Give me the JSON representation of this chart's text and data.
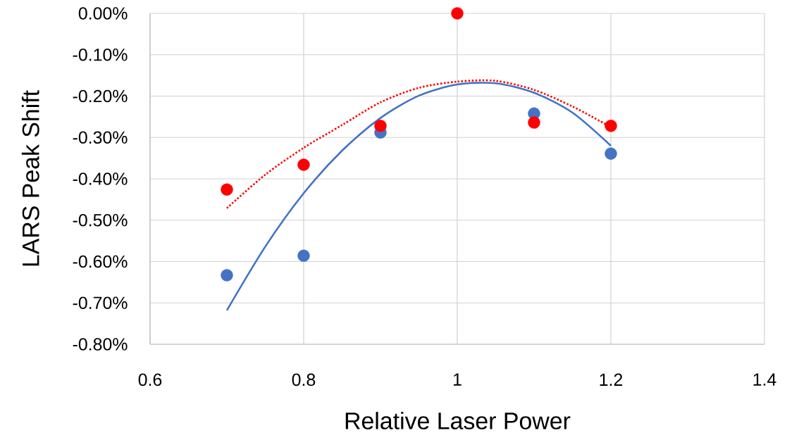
{
  "chart_data": {
    "type": "scatter",
    "xlabel": "Relative Laser Power",
    "ylabel": "LARS Peak Shift",
    "x": [
      0.7,
      0.8,
      0.9,
      1,
      1.1,
      1.2
    ],
    "series": [
      {
        "marker": "circle",
        "color": "#4472c4",
        "values": [
          -0.633,
          -0.586,
          -0.288,
          null,
          -0.242,
          -0.339
        ]
      },
      {
        "marker": "circle",
        "color": "#ff0000",
        "values": [
          -0.426,
          -0.366,
          -0.272,
          0,
          -0.264,
          -0.272
        ]
      },
      {
        "type": "line",
        "line_style": "solid",
        "color": "#4472c4",
        "x": [
          0.7,
          0.75,
          0.8,
          0.85,
          0.9,
          0.95,
          1.0,
          1.05,
          1.1,
          1.15,
          1.2
        ],
        "values": [
          -0.718,
          -0.564,
          -0.435,
          -0.332,
          -0.253,
          -0.199,
          -0.172,
          -0.169,
          -0.192,
          -0.24,
          -0.32
        ]
      },
      {
        "type": "line",
        "line_style": "dotted",
        "color": "#ff0000",
        "x": [
          0.7,
          0.75,
          0.8,
          0.85,
          0.9,
          0.95,
          1.0,
          1.05,
          1.1,
          1.15,
          1.2
        ],
        "values": [
          -0.471,
          -0.39,
          -0.325,
          -0.27,
          -0.215,
          -0.18,
          -0.165,
          -0.163,
          -0.185,
          -0.225,
          -0.275
        ]
      }
    ],
    "xlim": [
      0.6,
      1.4
    ],
    "ylim": [
      -0.8,
      0
    ],
    "xticks": [
      0.6,
      0.8,
      1,
      1.2,
      1.4
    ],
    "yticks": [
      {
        "value": 0,
        "label": "0.00%"
      },
      {
        "value": -0.1,
        "label": "-0.10%"
      },
      {
        "value": -0.2,
        "label": "-0.20%"
      },
      {
        "value": -0.3,
        "label": "-0.30%"
      },
      {
        "value": -0.4,
        "label": "-0.40%"
      },
      {
        "value": -0.5,
        "label": "-0.50%"
      },
      {
        "value": -0.6,
        "label": "-0.60%"
      },
      {
        "value": -0.7,
        "label": "-0.70%"
      },
      {
        "value": -0.8,
        "label": "-0.80%"
      }
    ],
    "grid": true
  }
}
